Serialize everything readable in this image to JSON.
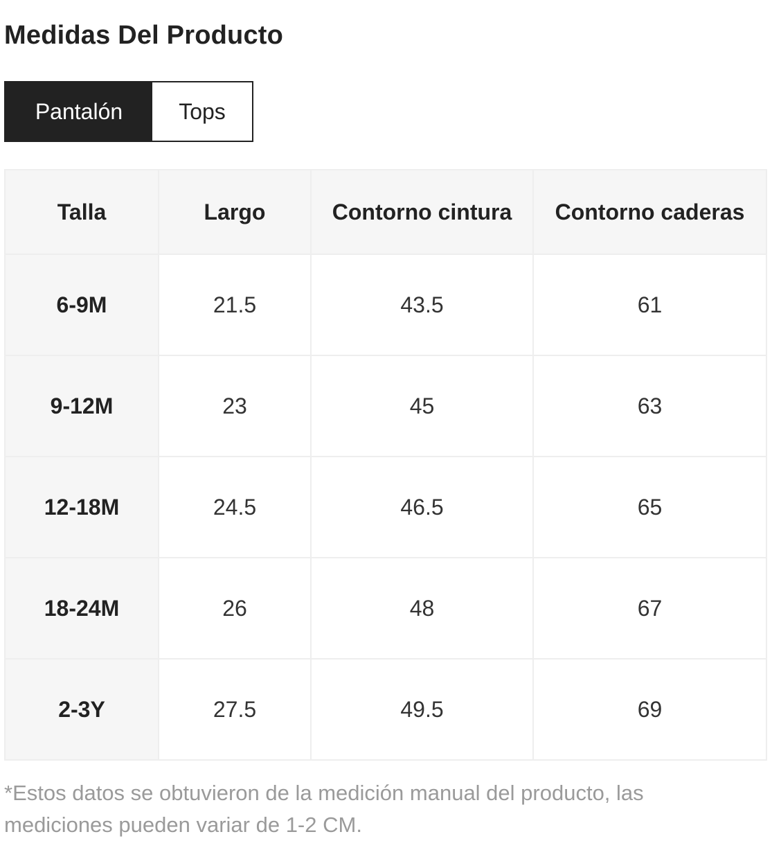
{
  "page": {
    "title": "Medidas Del Producto"
  },
  "tabs": [
    {
      "label": "Pantalón",
      "active": true
    },
    {
      "label": "Tops",
      "active": false
    }
  ],
  "table": {
    "headers": [
      "Talla",
      "Largo",
      "Contorno cintura",
      "Contorno caderas"
    ],
    "rows": [
      [
        "6-9M",
        "21.5",
        "43.5",
        "61"
      ],
      [
        "9-12M",
        "23",
        "45",
        "63"
      ],
      [
        "12-18M",
        "24.5",
        "46.5",
        "65"
      ],
      [
        "18-24M",
        "26",
        "48",
        "67"
      ],
      [
        "2-3Y",
        "27.5",
        "49.5",
        "69"
      ]
    ]
  },
  "footnote": "*Estos datos se obtuvieron de la medición manual del producto, las mediciones pueden variar de 1-2 CM.",
  "colors": {
    "tab_active_bg": "#222222",
    "header_bg": "#f6f6f6",
    "footnote_text": "#9a9a9a"
  }
}
